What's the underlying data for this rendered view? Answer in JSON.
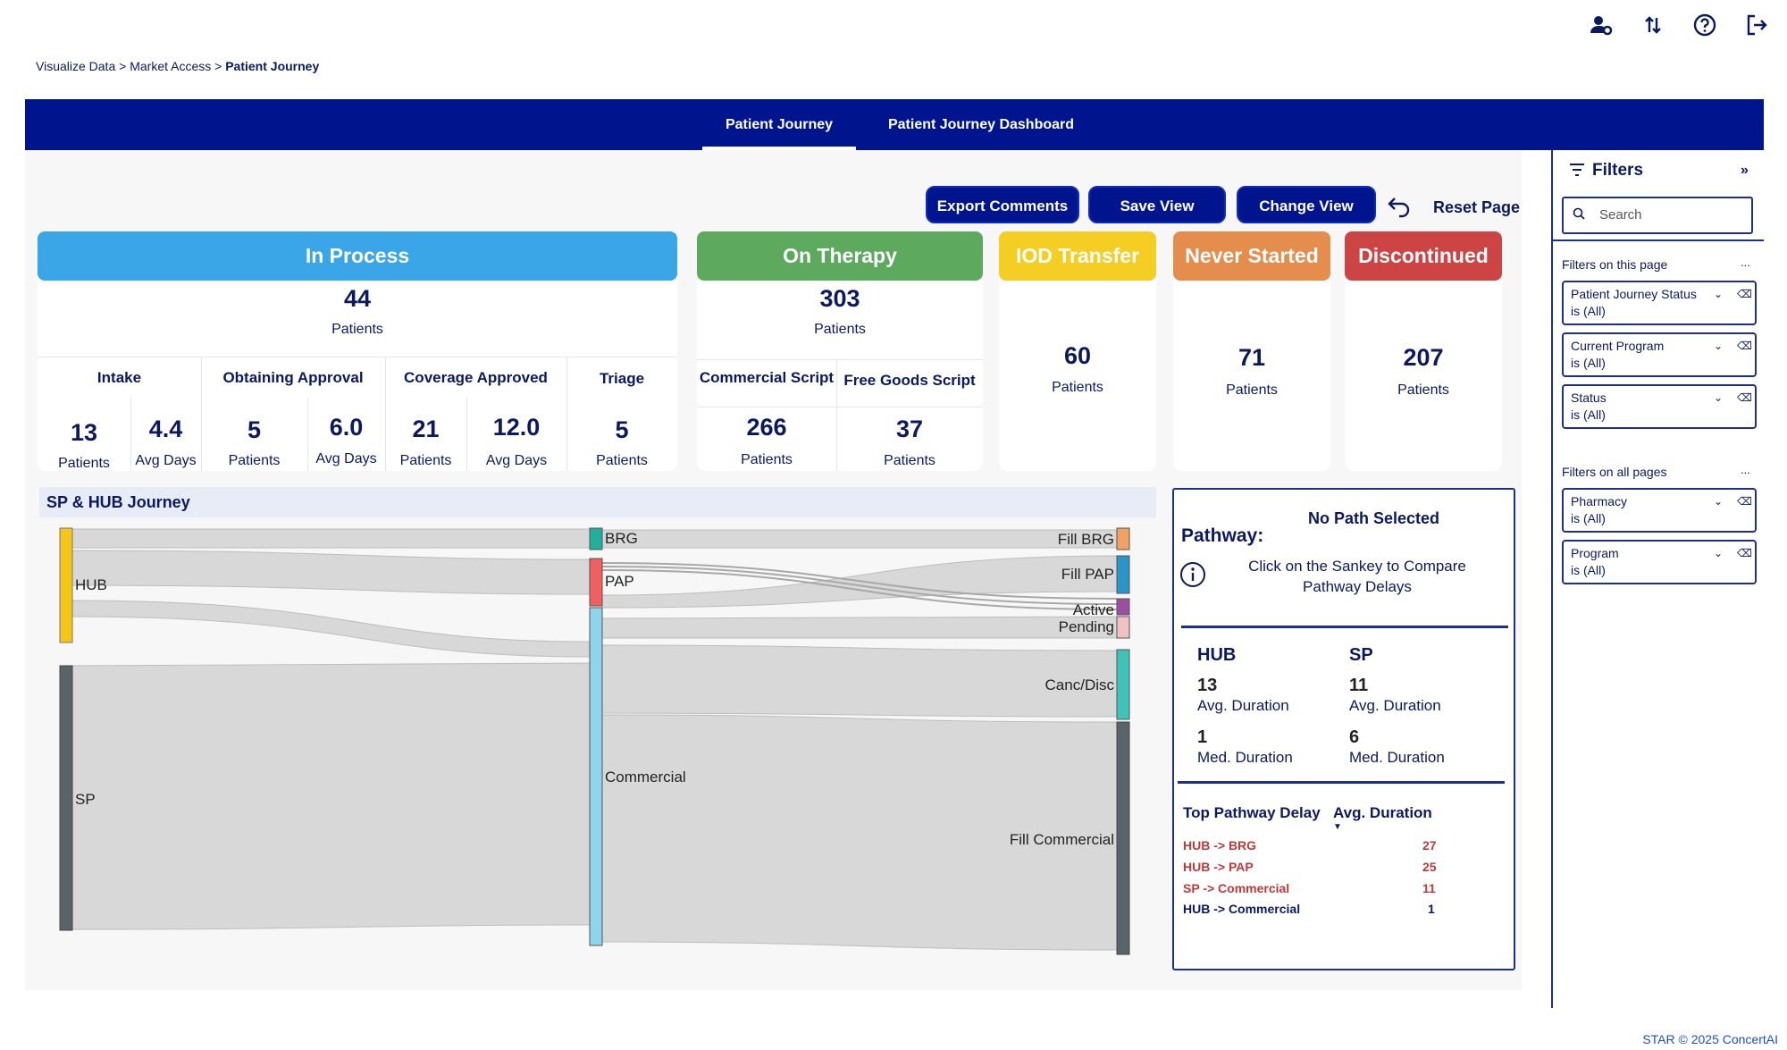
{
  "breadcrumb": {
    "part1": "Visualize Data",
    "sep1": ">",
    "part2": "Market Access",
    "sep2": ">",
    "current": "Patient Journey"
  },
  "tabs": [
    {
      "label": "Patient Journey",
      "active": true
    },
    {
      "label": "Patient Journey Dashboard",
      "active": false
    }
  ],
  "toolbar": {
    "export": "Export Comments",
    "save": "Save View",
    "change": "Change View",
    "reset": "Reset Page"
  },
  "cards": {
    "in_process": {
      "title": "In Process",
      "total": "44",
      "total_label": "Patients",
      "color": "#3aa6e8",
      "groups": [
        {
          "name": "Intake",
          "values": [
            {
              "v": "13",
              "l": "Patients"
            },
            {
              "v": "4.4",
              "l": "Avg Days"
            }
          ]
        },
        {
          "name": "Obtaining Approval",
          "values": [
            {
              "v": "5",
              "l": "Patients"
            },
            {
              "v": "6.0",
              "l": "Avg Days"
            }
          ]
        },
        {
          "name": "Coverage Approved",
          "values": [
            {
              "v": "21",
              "l": "Patients"
            },
            {
              "v": "12.0",
              "l": "Avg Days"
            }
          ]
        },
        {
          "name": "Triage",
          "values": [
            {
              "v": "5",
              "l": "Patients"
            }
          ]
        }
      ]
    },
    "on_therapy": {
      "title": "On Therapy",
      "total": "303",
      "total_label": "Patients",
      "color": "#5daa5e",
      "groups": [
        {
          "name": "Commercial Script",
          "v": "266",
          "l": "Patients"
        },
        {
          "name": "Free Goods Script",
          "v": "37",
          "l": "Patients"
        }
      ]
    },
    "iod": {
      "title": "IOD Transfer",
      "total": "60",
      "label": "Patients",
      "color": "#f5ce23"
    },
    "never": {
      "title": "Never Started",
      "total": "71",
      "label": "Patients",
      "color": "#e58d4c"
    },
    "disc": {
      "title": "Discontinued",
      "total": "207",
      "label": "Patients",
      "color": "#cc4444"
    }
  },
  "sankey": {
    "title": "SP & HUB Journey",
    "nodes": {
      "hub": "HUB",
      "sp": "SP",
      "brg": "BRG",
      "pap": "PAP",
      "commercial": "Commercial",
      "fill_brg": "Fill BRG",
      "fill_pap": "Fill PAP",
      "active": "Active",
      "pending": "Pending",
      "canc": "Canc/Disc",
      "fill_commercial": "Fill Commercial"
    }
  },
  "pathway": {
    "label": "Pathway:",
    "none": "No Path Selected",
    "hint": "Click on the Sankey to Compare Pathway Delays",
    "hub": {
      "title": "HUB",
      "avg": "13",
      "avg_label": "Avg. Duration",
      "med": "1",
      "med_label": "Med. Duration"
    },
    "sp": {
      "title": "SP",
      "avg": "11",
      "avg_label": "Avg. Duration",
      "med": "6",
      "med_label": "Med. Duration"
    },
    "table": {
      "col1": "Top Pathway Delay",
      "col2": "Avg. Duration",
      "rows": [
        {
          "path": "HUB -> BRG",
          "v": "27"
        },
        {
          "path": "HUB -> PAP",
          "v": "25"
        },
        {
          "path": "SP -> Commercial",
          "v": "11"
        },
        {
          "path": "HUB -> Commercial",
          "v": "1"
        }
      ]
    }
  },
  "filters": {
    "title": "Filters",
    "search": "Search",
    "page_label": "Filters on this page",
    "all_label": "Filters on all pages",
    "more": "...",
    "page": [
      {
        "name": "Patient Journey Status",
        "val": "is (All)"
      },
      {
        "name": "Current Program",
        "val": "is (All)"
      },
      {
        "name": "Status",
        "val": "is (All)"
      }
    ],
    "all": [
      {
        "name": "Pharmacy",
        "val": "is (All)"
      },
      {
        "name": "Program",
        "val": "is (All)"
      }
    ]
  },
  "footer": "STAR © 2025 ConcertAI"
}
